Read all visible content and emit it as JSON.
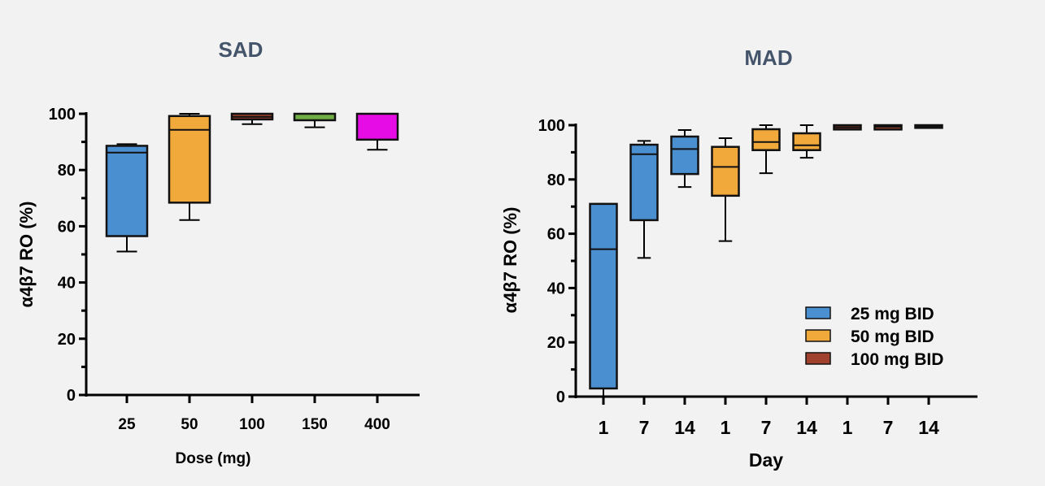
{
  "chart_data": [
    {
      "type": "box",
      "title": "SAD",
      "xlabel": "Dose (mg)",
      "ylabel": "α4β7 RO (%)",
      "ylim": [
        0,
        100
      ],
      "yticks": [
        "0",
        "20",
        "40",
        "60",
        "80",
        "100"
      ],
      "categories": [
        "25",
        "50",
        "100",
        "150",
        "400"
      ],
      "colors": [
        "#4a8fd0",
        "#f0a93a",
        "#a0412d",
        "#70ad47",
        "#e60ce6"
      ],
      "boxes": [
        {
          "min": 51,
          "q1": 56.5,
          "median": 86.2,
          "q3": 88.6,
          "max": 89.2
        },
        {
          "min": 62.2,
          "q1": 68.4,
          "median": 94.3,
          "q3": 99.2,
          "max": 100
        },
        {
          "min": 96.3,
          "q1": 98,
          "median": 98.9,
          "q3": 100,
          "max": 100
        },
        {
          "min": 95.2,
          "q1": 97.7,
          "median": 100,
          "q3": 100,
          "max": 100
        },
        {
          "min": 87.2,
          "q1": 90.8,
          "median": 100,
          "q3": 100,
          "max": 100
        }
      ],
      "grid": false
    },
    {
      "type": "box",
      "title": "MAD",
      "xlabel": "Day",
      "ylabel": "α4β7 RO (%)",
      "ylim": [
        0,
        100
      ],
      "yticks": [
        "0",
        "20",
        "40",
        "60",
        "80",
        "100"
      ],
      "categories": [
        "1",
        "7",
        "14",
        "1",
        "7",
        "14",
        "1",
        "7",
        "14"
      ],
      "legend_position": "right",
      "series": [
        {
          "name": "25 mg BID",
          "color": "#4a8fd0",
          "boxes": [
            {
              "min": 0,
              "q1": 3,
              "median": 54.3,
              "q3": 71,
              "max": 71
            },
            {
              "min": 51.1,
              "q1": 65,
              "median": 89.3,
              "q3": 92.8,
              "max": 94.2
            },
            {
              "min": 77.2,
              "q1": 82,
              "median": 91.2,
              "q3": 95.8,
              "max": 98.2
            }
          ]
        },
        {
          "name": "50 mg BID",
          "color": "#f0a93a",
          "boxes": [
            {
              "min": 57.3,
              "q1": 74,
              "median": 84.6,
              "q3": 92,
              "max": 95.2
            },
            {
              "min": 82.3,
              "q1": 90.8,
              "median": 93.8,
              "q3": 98.5,
              "max": 100
            },
            {
              "min": 88,
              "q1": 90.8,
              "median": 92.6,
              "q3": 97,
              "max": 100
            }
          ]
        },
        {
          "name": "100 mg BID",
          "color": "#a0412d",
          "boxes": [
            {
              "min": 98.4,
              "q1": 98.4,
              "median": 99.2,
              "q3": 100,
              "max": 100
            },
            {
              "min": 98.4,
              "q1": 98.4,
              "median": 99.4,
              "q3": 100,
              "max": 100
            },
            {
              "min": 99,
              "q1": 99,
              "median": 99.5,
              "q3": 100,
              "max": 100
            }
          ]
        }
      ],
      "grid": false
    }
  ]
}
